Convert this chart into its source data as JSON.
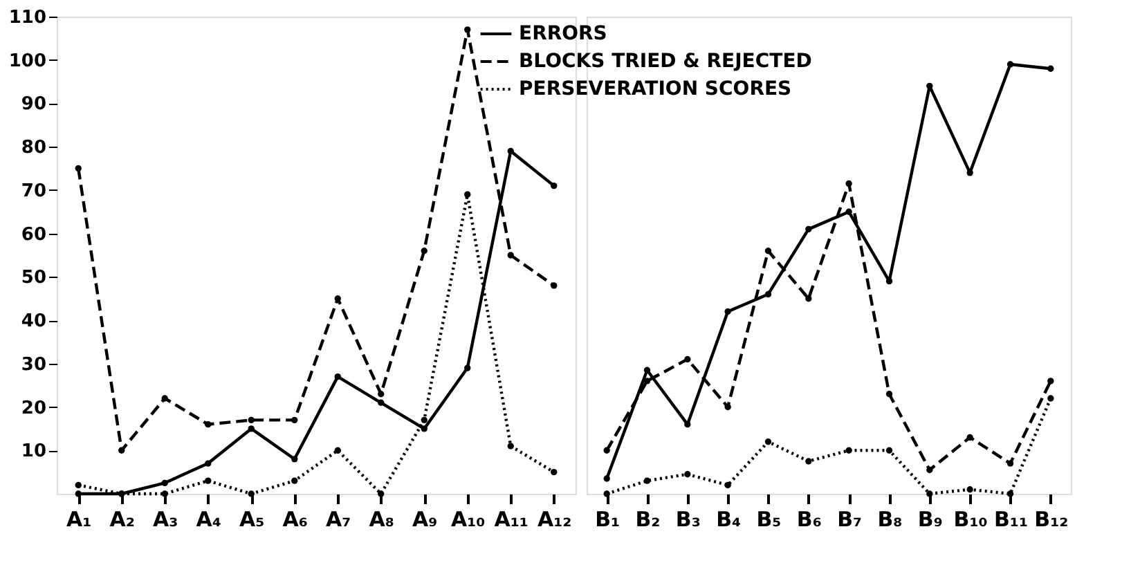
{
  "chart_data": [
    {
      "type": "line",
      "categories": [
        "A₁",
        "A₂",
        "A₃",
        "A₄",
        "A₅",
        "A₆",
        "A₇",
        "A₈",
        "A₉",
        "A₁₀",
        "A₁₁",
        "A₁₂"
      ],
      "ylim": [
        0,
        110
      ],
      "yticks": [
        10,
        20,
        30,
        40,
        50,
        60,
        70,
        80,
        90,
        100,
        110
      ],
      "grid": false,
      "marker": "circle",
      "legend": "top right",
      "series": [
        {
          "name": "ERRORS",
          "color": "#000000",
          "line_style": "solid",
          "values": [
            0,
            0,
            2.5,
            7,
            15,
            8,
            27,
            21,
            15,
            29,
            79,
            71
          ]
        },
        {
          "name": "BLOCKS TRIED & REJECTED",
          "color": "#000000",
          "line_style": "dashed",
          "values": [
            75,
            10,
            22,
            16,
            17,
            17,
            45,
            23,
            56,
            107,
            55,
            48
          ]
        },
        {
          "name": "PERSEVERATION SCORES",
          "color": "#000000",
          "line_style": "dotted",
          "values": [
            2,
            0,
            0,
            3,
            0,
            3,
            10,
            0,
            17,
            69,
            11,
            5
          ]
        }
      ]
    },
    {
      "type": "line",
      "categories": [
        "B₁",
        "B₂",
        "B₃",
        "B₄",
        "B₅",
        "B₆",
        "B₇",
        "B₈",
        "B₉",
        "B₁₀",
        "B₁₁",
        "B₁₂"
      ],
      "ylim": [
        0,
        110
      ],
      "grid": false,
      "marker": "circle",
      "tick_labels": "x",
      "series": [
        {
          "name": "ERRORS",
          "color": "#000000",
          "line_style": "solid",
          "values": [
            3.5,
            28.5,
            16,
            42,
            46,
            61,
            65,
            49,
            94,
            74,
            99,
            98
          ]
        },
        {
          "name": "BLOCKS TRIED & REJECTED",
          "color": "#000000",
          "line_style": "dashed",
          "values": [
            10,
            26,
            31,
            20,
            56,
            45,
            71.5,
            23,
            5.5,
            13,
            7,
            26
          ]
        },
        {
          "name": "PERSEVERATION SCORES",
          "color": "#000000",
          "line_style": "dotted",
          "values": [
            0,
            3,
            4.5,
            2,
            12,
            7.5,
            10,
            10,
            0,
            1,
            0,
            22
          ]
        }
      ]
    }
  ]
}
